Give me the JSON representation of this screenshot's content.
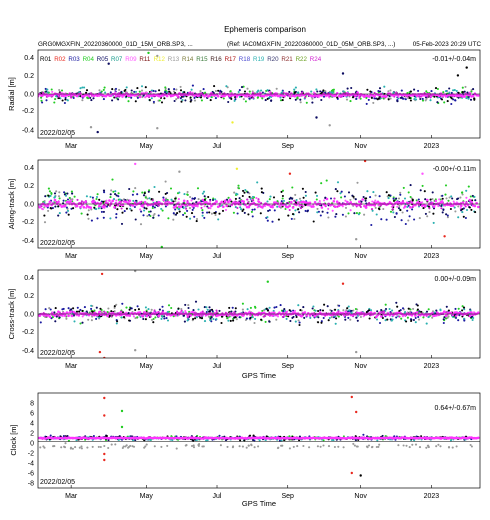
{
  "figure": {
    "title": "Ephemeris comparison",
    "left_file": "GRG0MGXFIN_20220360000_01D_15M_ORB.SP3, ...",
    "right_file": "(Ref: IAC0MGXFIN_20220360000_01D_05M_ORB.SP3, ...)",
    "generated": "05-Feb-2023 20:29 UTC",
    "start_date": "2022/02/05",
    "month_ticks": [
      "Mar",
      "May",
      "Jul",
      "Sep",
      "Nov",
      "2023"
    ]
  },
  "legend": {
    "entries": [
      {
        "name": "R01",
        "color": "#000000"
      },
      {
        "name": "R02",
        "color": "#e8281e"
      },
      {
        "name": "R03",
        "color": "#1a1aa0"
      },
      {
        "name": "R04",
        "color": "#22cc22"
      },
      {
        "name": "R05",
        "color": "#0b0b60"
      },
      {
        "name": "R07",
        "color": "#159a8a"
      },
      {
        "name": "R09",
        "color": "#ff55ff"
      },
      {
        "name": "R11",
        "color": "#7a1010"
      },
      {
        "name": "R12",
        "color": "#eeee30"
      },
      {
        "name": "R13",
        "color": "#999999"
      },
      {
        "name": "R14",
        "color": "#7a7a3a"
      },
      {
        "name": "R15",
        "color": "#3a7a3a"
      },
      {
        "name": "R16",
        "color": "#3a1a1a"
      },
      {
        "name": "R17",
        "color": "#aa1010"
      },
      {
        "name": "R18",
        "color": "#4a4ad0"
      },
      {
        "name": "R19",
        "color": "#2ab0b0"
      },
      {
        "name": "R20",
        "color": "#3a3a70"
      },
      {
        "name": "R21",
        "color": "#8a2a2a"
      },
      {
        "name": "R22",
        "color": "#6aa020"
      },
      {
        "name": "R24",
        "color": "#d020d0"
      }
    ]
  },
  "chart_data": [
    {
      "type": "scatter",
      "panel": "radial",
      "ylabel": "Radial [m]",
      "xlabel": "",
      "ylim": [
        -0.45,
        0.45
      ],
      "yticks": [
        "-0.4",
        "-0.2",
        "0.0",
        "0.2",
        "0.4"
      ],
      "stat_label": "-0.01+/-0.04m",
      "mean": -0.01,
      "std": 0.04,
      "typical_spread": 0.06,
      "outliers": [
        {
          "x": 0.12,
          "y": -0.34,
          "series": "R13"
        },
        {
          "x": 0.135,
          "y": -0.39,
          "series": "R05"
        },
        {
          "x": 0.25,
          "y": 0.42,
          "series": "R04"
        },
        {
          "x": 0.27,
          "y": 0.39,
          "series": "R13"
        },
        {
          "x": 0.27,
          "y": -0.35,
          "series": "R13"
        },
        {
          "x": 0.16,
          "y": 0.31,
          "series": "R05"
        },
        {
          "x": 0.44,
          "y": -0.29,
          "series": "R12"
        },
        {
          "x": 0.66,
          "y": -0.32,
          "series": "R13"
        },
        {
          "x": 0.63,
          "y": -0.24,
          "series": "R05"
        },
        {
          "x": 0.69,
          "y": 0.21,
          "series": "R05"
        },
        {
          "x": 0.97,
          "y": 0.27,
          "series": "R01"
        },
        {
          "x": 0.95,
          "y": 0.19,
          "series": "R01"
        }
      ]
    },
    {
      "type": "scatter",
      "panel": "along-track",
      "ylabel": "Along-track [m]",
      "xlabel": "",
      "ylim": [
        -0.45,
        0.45
      ],
      "yticks": [
        "-0.4",
        "-0.2",
        "0.0",
        "0.2",
        "0.4"
      ],
      "stat_label": "-0.00+/-0.11m",
      "mean": 0.0,
      "std": 0.11,
      "typical_spread": 0.13,
      "outliers": [
        {
          "x": 0.22,
          "y": 0.41,
          "series": "R09"
        },
        {
          "x": 0.28,
          "y": -0.44,
          "series": "R04"
        },
        {
          "x": 0.32,
          "y": 0.33,
          "series": "R13"
        },
        {
          "x": 0.45,
          "y": 0.36,
          "series": "R12"
        },
        {
          "x": 0.57,
          "y": 0.31,
          "series": "R02"
        },
        {
          "x": 0.74,
          "y": 0.44,
          "series": "R02"
        },
        {
          "x": 0.72,
          "y": -0.36,
          "series": "R13"
        },
        {
          "x": 0.87,
          "y": 0.31,
          "series": "R09"
        },
        {
          "x": 0.92,
          "y": -0.33,
          "series": "R02"
        }
      ]
    },
    {
      "type": "scatter",
      "panel": "cross-track",
      "ylabel": "Cross-track [m]",
      "xlabel": "GPS Time",
      "ylim": [
        -0.45,
        0.45
      ],
      "yticks": [
        "-0.4",
        "-0.2",
        "0.0",
        "0.2",
        "0.4"
      ],
      "stat_label": "0.00+/-0.09m",
      "mean": 0.0,
      "std": 0.09,
      "typical_spread": 0.07,
      "outliers": [
        {
          "x": 0.14,
          "y": -0.39,
          "series": "R02"
        },
        {
          "x": 0.145,
          "y": 0.41,
          "series": "R02"
        },
        {
          "x": 0.22,
          "y": 0.44,
          "series": "R13"
        },
        {
          "x": 0.22,
          "y": -0.37,
          "series": "R13"
        },
        {
          "x": 0.15,
          "y": -0.45,
          "series": "R02"
        },
        {
          "x": 0.52,
          "y": 0.33,
          "series": "R04"
        },
        {
          "x": 0.72,
          "y": -0.39,
          "series": "R13"
        },
        {
          "x": 0.69,
          "y": 0.31,
          "series": "R02"
        }
      ]
    },
    {
      "type": "scatter",
      "panel": "clock",
      "ylabel": "Clock [m]",
      "xlabel": "GPS Time",
      "ylim": [
        -9,
        10
      ],
      "yticks": [
        "-8",
        "-6",
        "-4",
        "-2",
        "0",
        "2",
        "4",
        "6",
        "8"
      ],
      "stat_label": "0.64+/-0.67m",
      "mean": 0.64,
      "std": 0.67,
      "typical_spread": 0.35,
      "outliers": [
        {
          "x": 0.15,
          "y": 9.0,
          "series": "R02"
        },
        {
          "x": 0.15,
          "y": 5.5,
          "series": "R02"
        },
        {
          "x": 0.15,
          "y": -3.4,
          "series": "R02"
        },
        {
          "x": 0.15,
          "y": -2.2,
          "series": "R02"
        },
        {
          "x": 0.19,
          "y": 6.4,
          "series": "R04"
        },
        {
          "x": 0.19,
          "y": 3.2,
          "series": "R04"
        },
        {
          "x": 0.71,
          "y": 9.2,
          "series": "R02"
        },
        {
          "x": 0.71,
          "y": -6.0,
          "series": "R02"
        },
        {
          "x": 0.72,
          "y": 6.2,
          "series": "R02"
        },
        {
          "x": 0.73,
          "y": -6.5,
          "series": "R01"
        }
      ]
    }
  ]
}
